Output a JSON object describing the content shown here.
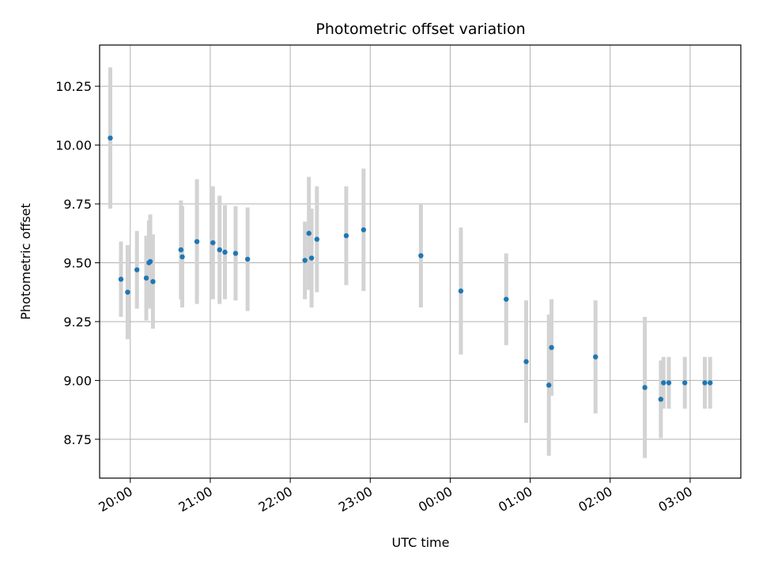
{
  "chart_data": {
    "type": "scatter",
    "title": "Photometric offset variation",
    "xlabel": "UTC time",
    "ylabel": "Photometric offset",
    "x_tick_labels": [
      "20:00",
      "21:00",
      "22:00",
      "23:00",
      "00:00",
      "01:00",
      "02:00",
      "03:00"
    ],
    "y_tick_labels": [
      "8.75",
      "9.00",
      "9.25",
      "9.50",
      "9.75",
      "10.00",
      "10.25"
    ],
    "y_ticks": [
      8.75,
      9.0,
      9.25,
      9.5,
      9.75,
      10.0,
      10.25
    ],
    "x_ticks": [
      "20:00",
      "21:00",
      "22:00",
      "23:00",
      "00:00",
      "01:00",
      "02:00",
      "03:00"
    ],
    "xlim": [
      "19:37",
      "03:38"
    ],
    "ylim": [
      8.585,
      10.425
    ],
    "grid": true,
    "colors": {
      "point": "#1f77b4",
      "errorbar": "#d3d3d3",
      "grid": "#b0b0b0"
    },
    "points": [
      {
        "t": "19:45",
        "y": 10.03,
        "err": 0.3
      },
      {
        "t": "19:53",
        "y": 9.43,
        "err": 0.16
      },
      {
        "t": "19:58",
        "y": 9.375,
        "err": 0.2
      },
      {
        "t": "20:05",
        "y": 9.47,
        "err": 0.165
      },
      {
        "t": "20:12",
        "y": 9.435,
        "err": 0.18
      },
      {
        "t": "20:14",
        "y": 9.5,
        "err": 0.18
      },
      {
        "t": "20:15",
        "y": 9.505,
        "err": 0.2
      },
      {
        "t": "20:17",
        "y": 9.42,
        "err": 0.2
      },
      {
        "t": "20:38",
        "y": 9.555,
        "err": 0.21
      },
      {
        "t": "20:39",
        "y": 9.525,
        "err": 0.215
      },
      {
        "t": "20:50",
        "y": 9.59,
        "err": 0.265
      },
      {
        "t": "21:02",
        "y": 9.585,
        "err": 0.24
      },
      {
        "t": "21:07",
        "y": 9.555,
        "err": 0.23
      },
      {
        "t": "21:11",
        "y": 9.545,
        "err": 0.2
      },
      {
        "t": "21:19",
        "y": 9.54,
        "err": 0.2
      },
      {
        "t": "21:28",
        "y": 9.515,
        "err": 0.22
      },
      {
        "t": "22:11",
        "y": 9.51,
        "err": 0.165
      },
      {
        "t": "22:14",
        "y": 9.625,
        "err": 0.24
      },
      {
        "t": "22:16",
        "y": 9.52,
        "err": 0.21
      },
      {
        "t": "22:20",
        "y": 9.6,
        "err": 0.225
      },
      {
        "t": "22:42",
        "y": 9.615,
        "err": 0.21
      },
      {
        "t": "22:55",
        "y": 9.64,
        "err": 0.26
      },
      {
        "t": "23:38",
        "y": 9.53,
        "err": 0.22
      },
      {
        "t": "00:08",
        "y": 9.38,
        "err": 0.27
      },
      {
        "t": "00:42",
        "y": 9.345,
        "err": 0.195
      },
      {
        "t": "00:57",
        "y": 9.08,
        "err": 0.26
      },
      {
        "t": "01:14",
        "y": 8.98,
        "err": 0.3
      },
      {
        "t": "01:16",
        "y": 9.14,
        "err": 0.205
      },
      {
        "t": "01:49",
        "y": 9.1,
        "err": 0.24
      },
      {
        "t": "02:26",
        "y": 8.97,
        "err": 0.3
      },
      {
        "t": "02:38",
        "y": 8.92,
        "err": 0.165
      },
      {
        "t": "02:40",
        "y": 8.99,
        "err": 0.11
      },
      {
        "t": "02:44",
        "y": 8.99,
        "err": 0.11
      },
      {
        "t": "02:56",
        "y": 8.99,
        "err": 0.11
      },
      {
        "t": "03:11",
        "y": 8.99,
        "err": 0.11
      },
      {
        "t": "03:15",
        "y": 8.99,
        "err": 0.11
      }
    ]
  }
}
